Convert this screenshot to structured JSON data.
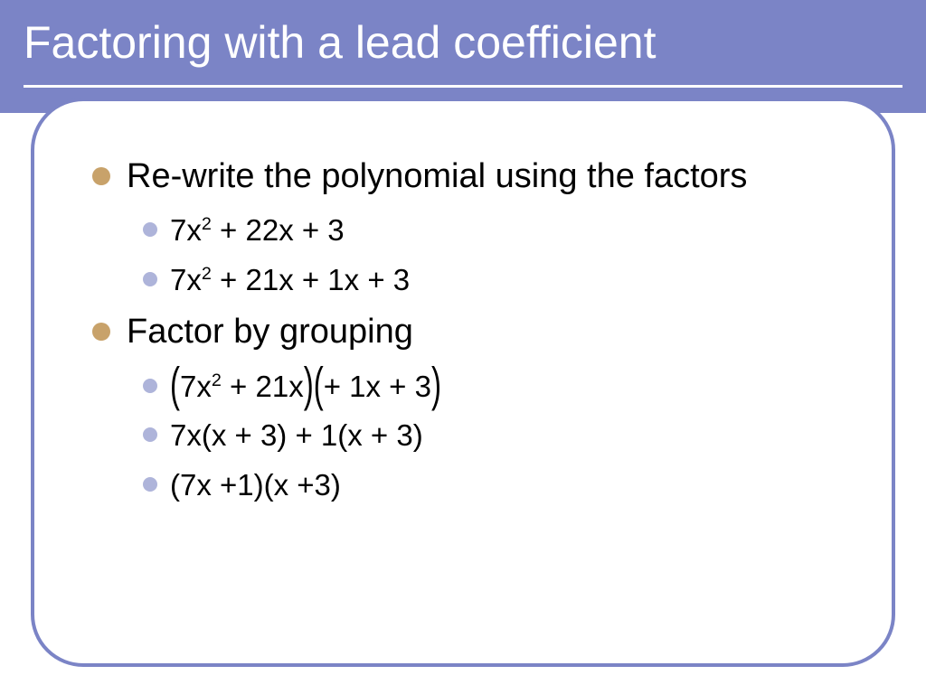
{
  "slide": {
    "title": "Factoring with a lead coefficient",
    "colors": {
      "header_bg": "#7b84c6",
      "header_text": "#ffffff",
      "frame_border": "#7b84c6",
      "bullet_lvl1": "#c8a26a",
      "bullet_lvl2": "#aeb4da",
      "body_text": "#000000",
      "background": "#ffffff"
    },
    "typography": {
      "title_fontsize": 50,
      "lvl1_fontsize": 38,
      "lvl2_fontsize": 33,
      "font_family": "Arial"
    },
    "bullets": [
      {
        "level": 1,
        "text": "Re-write the polynomial using the factors"
      },
      {
        "level": 2,
        "html": "7x<sup>2</sup> + 22x + 3"
      },
      {
        "level": 2,
        "html": "7x<sup>2</sup> + 21x + 1x + 3"
      },
      {
        "level": 1,
        "text": "Factor by grouping"
      },
      {
        "level": 2,
        "html": "<span class='lbrack'>(</span>7x<sup>2</sup> + 21x<span class='rbrack'>)</span><span class='lbrack'>(</span>+ 1x + 3<span class='rbrack'>)</span>",
        "grouping_brackets": true
      },
      {
        "level": 2,
        "html": "7x(x + 3) + 1(x + 3)"
      },
      {
        "level": 2,
        "html": "(7x +1)(x +3)"
      }
    ]
  }
}
